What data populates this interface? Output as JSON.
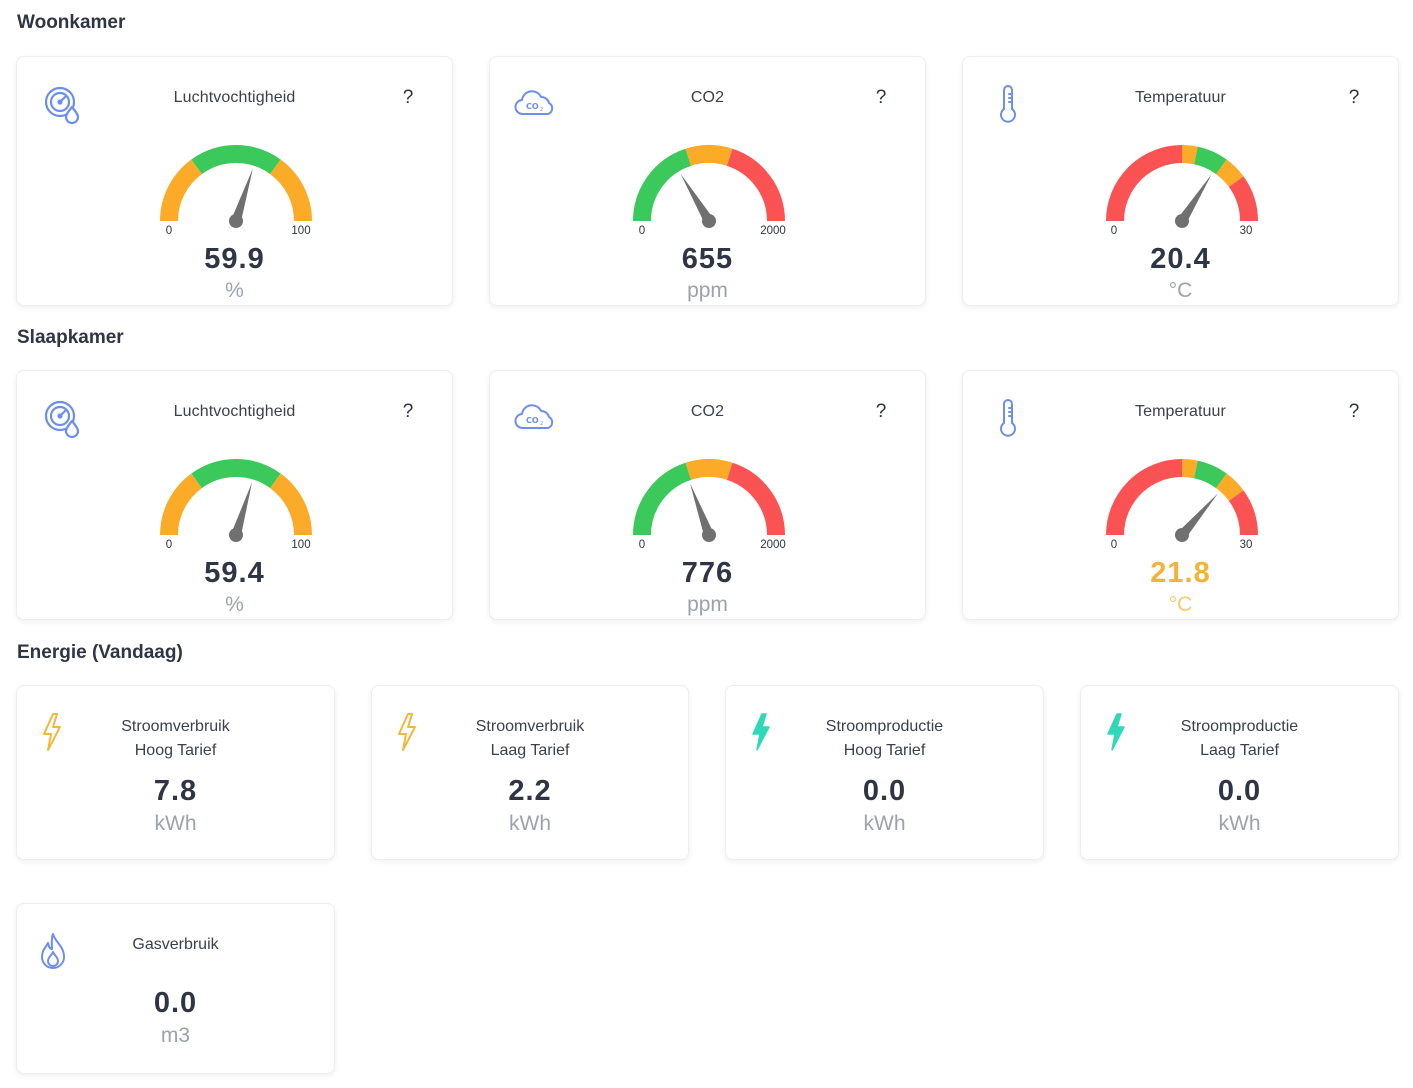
{
  "colors": {
    "green": "#3cc95b",
    "orange": "#fbab27",
    "red": "#fb5253",
    "needle": "#707070",
    "icon_blue": "#6c8ef0",
    "bolt_yellow": "#f4b63b",
    "bolt_teal": "#2fd9b7",
    "highlight": "#f5b335"
  },
  "sections": {
    "woonkamer": "Woonkamer",
    "slaapkamer": "Slaapkamer",
    "energie": "Energie (Vandaag)"
  },
  "help_label": "?",
  "gauges": [
    {
      "title": "Luchtvochtigheid",
      "icon": "humidity-icon",
      "value": "59.9",
      "unit": "%",
      "min_label": "0",
      "max_label": "100",
      "min": 0,
      "max": 100,
      "reading": 59.9,
      "bands": [
        {
          "from": 0,
          "to": 30,
          "color": "orange"
        },
        {
          "from": 30,
          "to": 70,
          "color": "green"
        },
        {
          "from": 70,
          "to": 100,
          "color": "orange"
        }
      ],
      "highlight": false
    },
    {
      "title": "CO2",
      "icon": "co2-cloud-icon",
      "value": "655",
      "unit": "ppm",
      "min_label": "0",
      "max_label": "2000",
      "min": 0,
      "max": 2000,
      "reading": 655,
      "bands": [
        {
          "from": 0,
          "to": 800,
          "color": "green"
        },
        {
          "from": 800,
          "to": 1200,
          "color": "orange"
        },
        {
          "from": 1200,
          "to": 2000,
          "color": "red"
        }
      ],
      "highlight": false
    },
    {
      "title": "Temperatuur",
      "icon": "thermometer-icon",
      "value": "20.4",
      "unit": "°C",
      "min_label": "0",
      "max_label": "30",
      "min": 0,
      "max": 30,
      "reading": 20.4,
      "bands": [
        {
          "from": 0,
          "to": 15,
          "color": "red"
        },
        {
          "from": 15,
          "to": 17,
          "color": "orange"
        },
        {
          "from": 17,
          "to": 21,
          "color": "green"
        },
        {
          "from": 21,
          "to": 24,
          "color": "orange"
        },
        {
          "from": 24,
          "to": 30,
          "color": "red"
        }
      ],
      "highlight": false
    },
    {
      "title": "Luchtvochtigheid",
      "icon": "humidity-icon",
      "value": "59.4",
      "unit": "%",
      "min_label": "0",
      "max_label": "100",
      "min": 0,
      "max": 100,
      "reading": 59.4,
      "bands": [
        {
          "from": 0,
          "to": 30,
          "color": "orange"
        },
        {
          "from": 30,
          "to": 70,
          "color": "green"
        },
        {
          "from": 70,
          "to": 100,
          "color": "orange"
        }
      ],
      "highlight": false
    },
    {
      "title": "CO2",
      "icon": "co2-cloud-icon",
      "value": "776",
      "unit": "ppm",
      "min_label": "0",
      "max_label": "2000",
      "min": 0,
      "max": 2000,
      "reading": 776,
      "bands": [
        {
          "from": 0,
          "to": 800,
          "color": "green"
        },
        {
          "from": 800,
          "to": 1200,
          "color": "orange"
        },
        {
          "from": 1200,
          "to": 2000,
          "color": "red"
        }
      ],
      "highlight": false
    },
    {
      "title": "Temperatuur",
      "icon": "thermometer-icon",
      "value": "21.8",
      "unit": "°C",
      "min_label": "0",
      "max_label": "30",
      "min": 0,
      "max": 30,
      "reading": 21.8,
      "bands": [
        {
          "from": 0,
          "to": 15,
          "color": "red"
        },
        {
          "from": 15,
          "to": 17,
          "color": "orange"
        },
        {
          "from": 17,
          "to": 21,
          "color": "green"
        },
        {
          "from": 21,
          "to": 24,
          "color": "orange"
        },
        {
          "from": 24,
          "to": 30,
          "color": "red"
        }
      ],
      "highlight": true
    }
  ],
  "energy": [
    {
      "title_line1": "Stroomverbruik",
      "title_line2": "Hoog Tarief",
      "value": "7.8",
      "unit": "kWh",
      "icon": "bolt-outline-icon"
    },
    {
      "title_line1": "Stroomverbruik",
      "title_line2": "Laag Tarief",
      "value": "2.2",
      "unit": "kWh",
      "icon": "bolt-outline-icon"
    },
    {
      "title_line1": "Stroomproductie",
      "title_line2": "Hoog Tarief",
      "value": "0.0",
      "unit": "kWh",
      "icon": "bolt-filled-icon"
    },
    {
      "title_line1": "Stroomproductie",
      "title_line2": "Laag Tarief",
      "value": "0.0",
      "unit": "kWh",
      "icon": "bolt-filled-icon"
    },
    {
      "title_line1": "Gasverbruik",
      "value": "0.0",
      "unit": "m3",
      "icon": "flame-icon"
    }
  ]
}
